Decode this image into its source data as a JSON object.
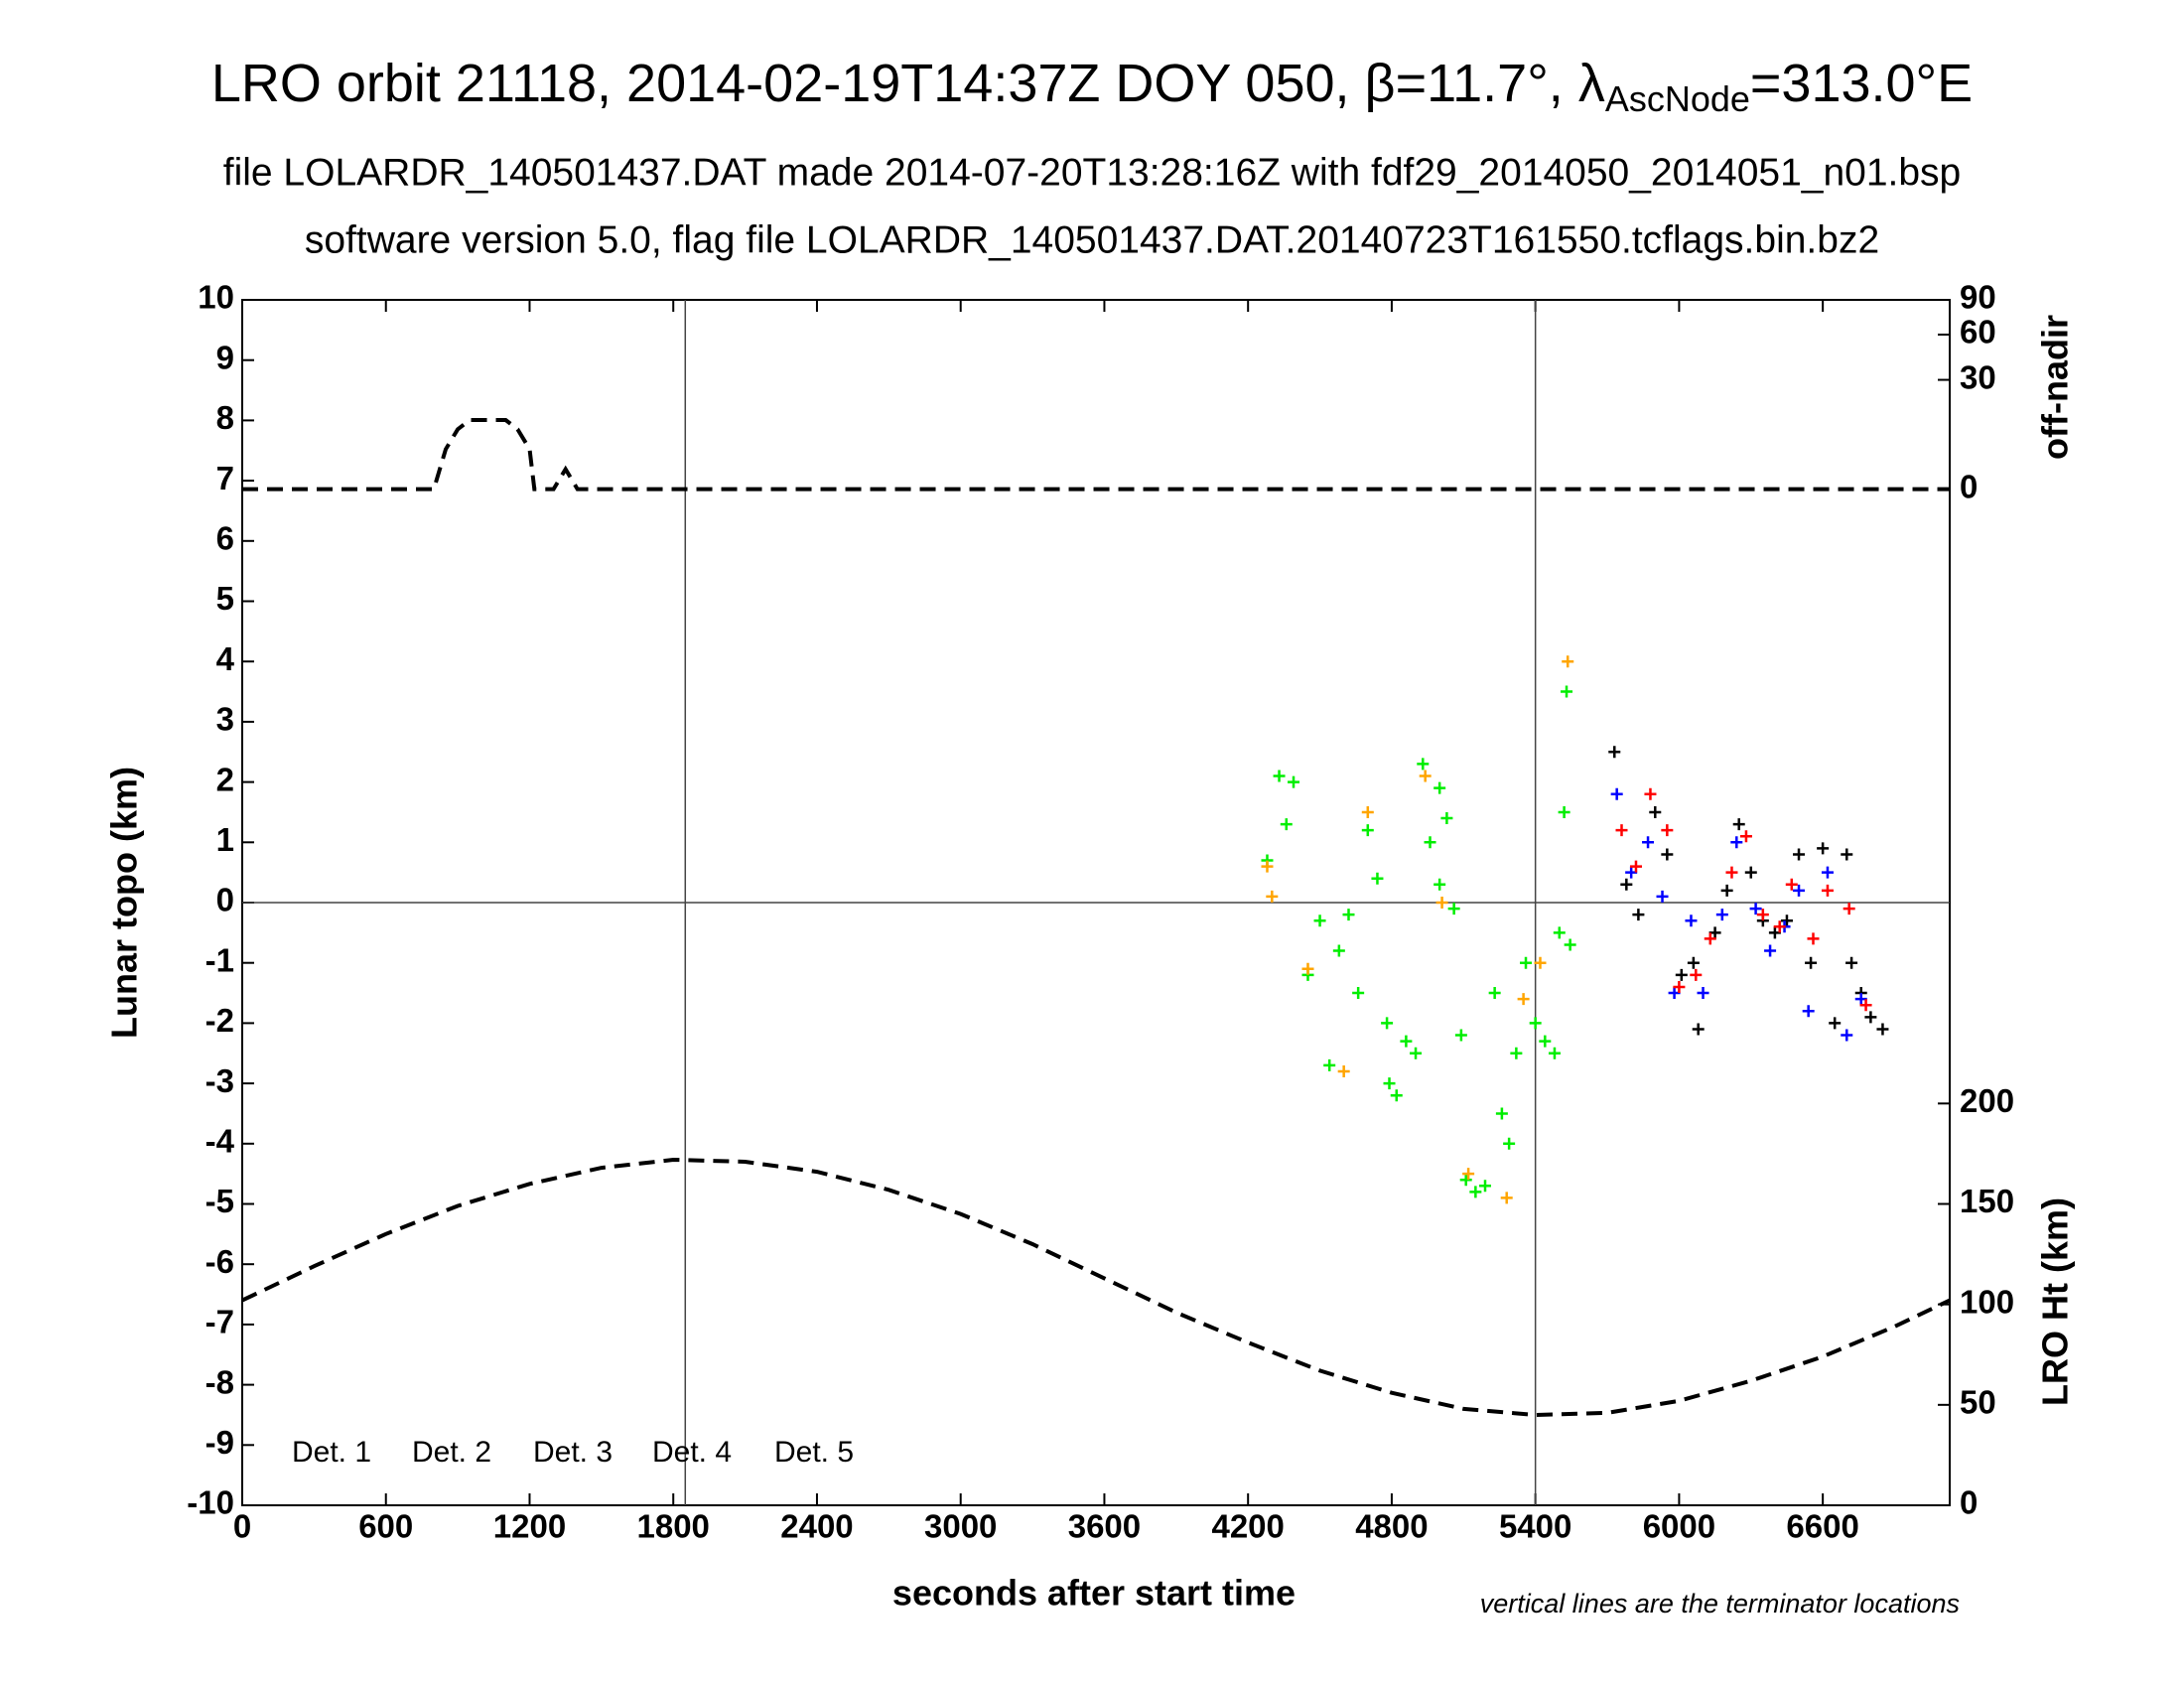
{
  "chart_data": {
    "type": "scatter",
    "title": "LRO orbit 21118, 2014-02-19T14:37Z DOY 050, β=11.7°, λ",
    "title_subscript": "AscNode",
    "title_end": "=313.0°E",
    "subtitles": [
      "file LOLARDR_140501437.DAT made 2014-07-20T13:28:16Z with fdf29_2014050_2014051_n01.bsp",
      "software version 5.0, flag file LOLARDR_140501437.DAT.20140723T161550.tcflags.bin.bz2"
    ],
    "x_label": "seconds after start time",
    "y_label": "Lunar topo (km)",
    "y2_label": "off-nadir",
    "y3_label": "LRO Ht (km)",
    "note": "vertical lines are the terminator locations",
    "xlim": [
      0,
      7130
    ],
    "xticks": [
      0,
      600,
      1200,
      1800,
      2400,
      3000,
      3600,
      4200,
      4800,
      5400,
      6000,
      6600
    ],
    "ylim": [
      -10,
      10
    ],
    "yticks": [
      -10,
      -9,
      -8,
      -7,
      -6,
      -5,
      -4,
      -3,
      -2,
      -1,
      0,
      1,
      2,
      3,
      4,
      5,
      6,
      7,
      8,
      9,
      10
    ],
    "y2lim": [
      0,
      90
    ],
    "y2scale": "sqrt",
    "y2ticks": [
      0,
      30,
      60,
      90
    ],
    "y3lim": [
      0,
      200
    ],
    "y3ticks": [
      0,
      50,
      100,
      150,
      200
    ],
    "vlines": [
      1850,
      5400
    ],
    "hlines": [
      0
    ],
    "offnadir": {
      "axis": "y2",
      "x": [
        0,
        800,
        850,
        900,
        950,
        1000,
        1100,
        1150,
        1200,
        1220,
        1300,
        1350,
        1400,
        7130
      ],
      "values": [
        0,
        0,
        4,
        9,
        12,
        12,
        12,
        9,
        4,
        0,
        0,
        1,
        0,
        0
      ]
    },
    "height": {
      "axis": "y3",
      "x": [
        0,
        300,
        600,
        900,
        1200,
        1500,
        1800,
        2100,
        2400,
        2700,
        3000,
        3300,
        3600,
        3900,
        4200,
        4500,
        4800,
        5100,
        5400,
        5700,
        6000,
        6300,
        6600,
        6900,
        7130
      ],
      "values": [
        102,
        119,
        135,
        149,
        160,
        168,
        172,
        171,
        166,
        157,
        145,
        130,
        113,
        96,
        81,
        67,
        56,
        48,
        45,
        46,
        52,
        62,
        74,
        89,
        102
      ]
    },
    "series": [
      {
        "name": "Det. 1",
        "color": "#000000",
        "x": [
          5730,
          5780,
          5830,
          5900,
          5950,
          6010,
          6060,
          6080,
          6150,
          6200,
          6250,
          6300,
          6350,
          6400,
          6450,
          6500,
          6550,
          6600,
          6650,
          6700,
          6720,
          6760,
          6800,
          6850
        ],
        "values": [
          2.5,
          0.3,
          -0.2,
          1.5,
          0.8,
          -1.2,
          -1.0,
          -2.1,
          -0.5,
          0.2,
          1.3,
          0.5,
          -0.3,
          -0.5,
          -0.3,
          0.8,
          -1.0,
          0.9,
          -2.0,
          0.8,
          -1.0,
          -1.5,
          -1.9,
          -2.1
        ]
      },
      {
        "name": "Det. 2",
        "color": "#0000ff",
        "x": [
          5740,
          5800,
          5870,
          5930,
          5980,
          6050,
          6100,
          6180,
          6240,
          6320,
          6380,
          6440,
          6500,
          6540,
          6620,
          6700,
          6760
        ],
        "values": [
          1.8,
          0.5,
          1.0,
          0.1,
          -1.5,
          -0.3,
          -1.5,
          -0.2,
          1.0,
          -0.1,
          -0.8,
          -0.4,
          0.2,
          -1.8,
          0.5,
          -2.2,
          -1.6
        ]
      },
      {
        "name": "Det. 3",
        "color": "#00ee00",
        "x": [
          4280,
          4330,
          4360,
          4390,
          4450,
          4500,
          4540,
          4580,
          4620,
          4660,
          4700,
          4740,
          4780,
          4790,
          4820,
          4860,
          4900,
          4930,
          4960,
          5000,
          5000,
          5030,
          5060,
          5090,
          5110,
          5150,
          5190,
          5230,
          5260,
          5290,
          5320,
          5360,
          5400,
          5440,
          5480,
          5500,
          5520,
          5530,
          5545
        ],
        "values": [
          0.7,
          2.1,
          1.3,
          2.0,
          -1.2,
          -0.3,
          -2.7,
          -0.8,
          -0.2,
          -1.5,
          1.2,
          0.4,
          -2.0,
          -3.0,
          -3.2,
          -2.3,
          -2.5,
          2.3,
          1.0,
          0.3,
          1.9,
          1.4,
          -0.1,
          -2.2,
          -4.6,
          -4.8,
          -4.7,
          -1.5,
          -3.5,
          -4.0,
          -2.5,
          -1.0,
          -2.0,
          -2.3,
          -2.5,
          -0.5,
          1.5,
          3.5,
          -0.7
        ]
      },
      {
        "name": "Det. 4",
        "color": "#ffa500",
        "x": [
          4280,
          4300,
          4450,
          4600,
          4700,
          4940,
          5010,
          5120,
          5280,
          5350,
          5420,
          5535
        ],
        "values": [
          0.6,
          0.1,
          -1.1,
          -2.8,
          1.5,
          2.1,
          0.0,
          -4.5,
          -4.9,
          -1.6,
          -1.0,
          4.0
        ]
      },
      {
        "name": "Det. 5",
        "color": "#ff0000",
        "x": [
          5760,
          5820,
          5880,
          5950,
          6000,
          6070,
          6130,
          6220,
          6280,
          6350,
          6420,
          6470,
          6560,
          6620,
          6710,
          6780
        ],
        "values": [
          1.2,
          0.6,
          1.8,
          1.2,
          -1.4,
          -1.2,
          -0.6,
          0.5,
          1.1,
          -0.2,
          -0.4,
          0.3,
          -0.6,
          0.2,
          -0.1,
          -1.7
        ]
      }
    ]
  }
}
